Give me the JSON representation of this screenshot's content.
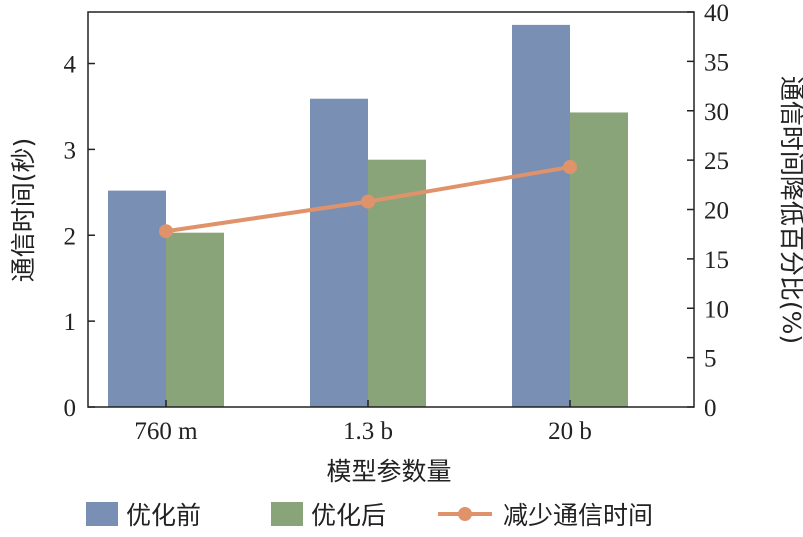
{
  "chart_data": {
    "type": "bar",
    "categories": [
      "760 m",
      "1.3 b",
      "20 b"
    ],
    "series": [
      {
        "name": "优化前",
        "axis": "left",
        "type": "bar",
        "color": "#7a8fb4",
        "values": [
          2.52,
          3.59,
          4.45
        ]
      },
      {
        "name": "优化后",
        "axis": "left",
        "type": "bar",
        "color": "#8aa47a",
        "values": [
          2.03,
          2.88,
          3.43
        ]
      },
      {
        "name": "减少通信时间",
        "axis": "right",
        "type": "line",
        "color": "#e0936a",
        "values": [
          17.8,
          20.8,
          24.3
        ]
      }
    ],
    "xlabel": "模型参数量",
    "ylabel_left": "通信时间(秒)",
    "ylabel_right": "通信时间降低百分比(%)",
    "ylim_left": [
      0,
      4.6
    ],
    "yticks_left": [
      "0",
      "1",
      "2",
      "3",
      "4"
    ],
    "ylim_right": [
      0,
      40
    ],
    "yticks_right": [
      "0",
      "5",
      "10",
      "15",
      "20",
      "25",
      "30",
      "35",
      "40"
    ],
    "grid": false,
    "legend_position": "bottom"
  }
}
